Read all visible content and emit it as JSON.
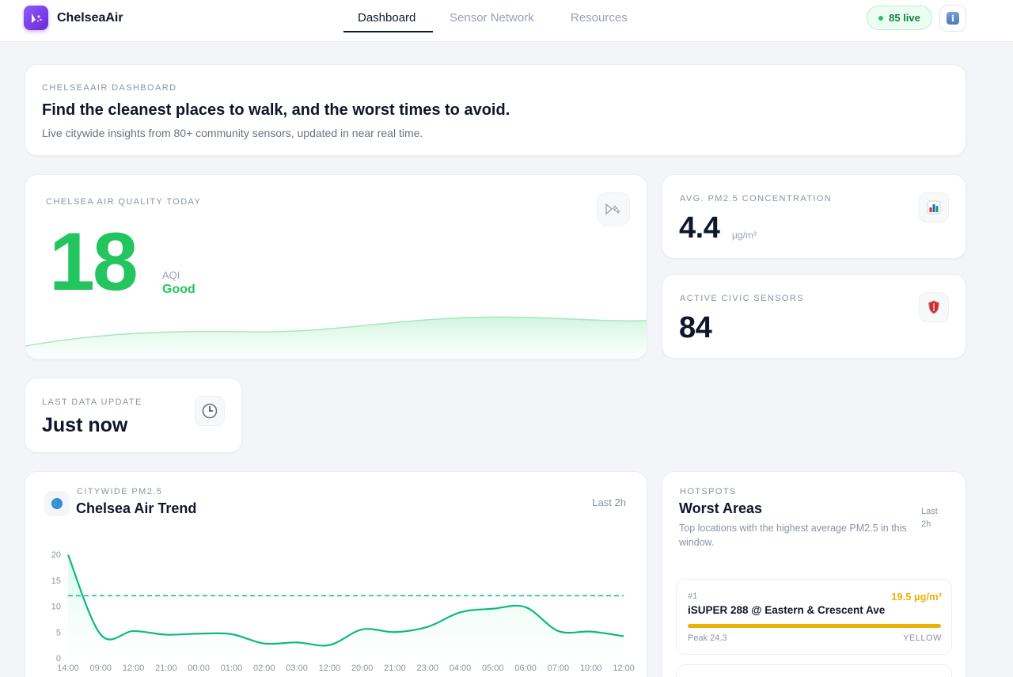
{
  "header": {
    "brand": "ChelseaAir",
    "tabs": [
      {
        "label": "Dashboard",
        "active": true
      },
      {
        "label": "Sensor Network",
        "active": false
      },
      {
        "label": "Resources",
        "active": false
      }
    ],
    "live_label": "85 live",
    "icons": {
      "logo": "wand-sparkle-icon",
      "info": "info-icon"
    }
  },
  "hero": {
    "eyebrow": "CHELSEAAIR DASHBOARD",
    "title": "Find the cleanest places to walk, and the worst times to avoid.",
    "subtitle": "Live citywide insights from 80+ community sensors, updated in near real time."
  },
  "aqi_today": {
    "eyebrow": "CHELSEA AIR QUALITY TODAY",
    "value": "18",
    "unit": "AQI",
    "level": "Good",
    "level_color": "#22c55e",
    "icon": "sparkle-wind-icon"
  },
  "avg_pm25": {
    "eyebrow": "AVG. PM2.5 CONCENTRATION",
    "value": "4.4",
    "unit": "µg/m³",
    "icon": "bar-chart-icon"
  },
  "sensors": {
    "eyebrow": "ACTIVE CIVIC SENSORS",
    "value": "84",
    "icon": "shield-icon"
  },
  "last_update": {
    "eyebrow": "LAST DATA UPDATE",
    "value": "Just now",
    "icon": "clock-icon"
  },
  "trend": {
    "eyebrow": "CITYWIDE PM2.5",
    "title": "Chelsea Air Trend",
    "range": "Last 2h",
    "icon": "globe-icon"
  },
  "chart_data": {
    "type": "line",
    "x": [
      "14:00",
      "09:00",
      "12:00",
      "21:00",
      "00:00",
      "01:00",
      "02:00",
      "03:00",
      "12:00",
      "20:00",
      "21:00",
      "23:00",
      "04:00",
      "05:00",
      "06:00",
      "07:00",
      "10:00",
      "12:00"
    ],
    "series": [
      {
        "values": [
          19.9,
          4.5,
          5.2,
          4.5,
          4.7,
          4.6,
          2.8,
          3.0,
          2.5,
          5.5,
          5.0,
          6.0,
          8.8,
          9.5,
          9.8,
          5.2,
          5.1,
          4.2
        ]
      }
    ],
    "threshold": 12,
    "ylim": [
      0,
      20
    ],
    "yticks": [
      0,
      5,
      10,
      15,
      20
    ],
    "line_color": "#10b981",
    "grid": false
  },
  "hotspots": {
    "eyebrow": "HOTSPOTS",
    "title": "Worst Areas",
    "range": "Last 2h",
    "description": "Top locations with the highest average PM2.5 in this window.",
    "items": [
      {
        "rank": "#1",
        "name": "iSUPER 288 @ Eastern & Crescent Ave",
        "value": "19.5 µg/m³",
        "peak": "Peak 24.3",
        "category": "YELLOW",
        "fill": 1.0,
        "color": "#eab308"
      }
    ]
  }
}
